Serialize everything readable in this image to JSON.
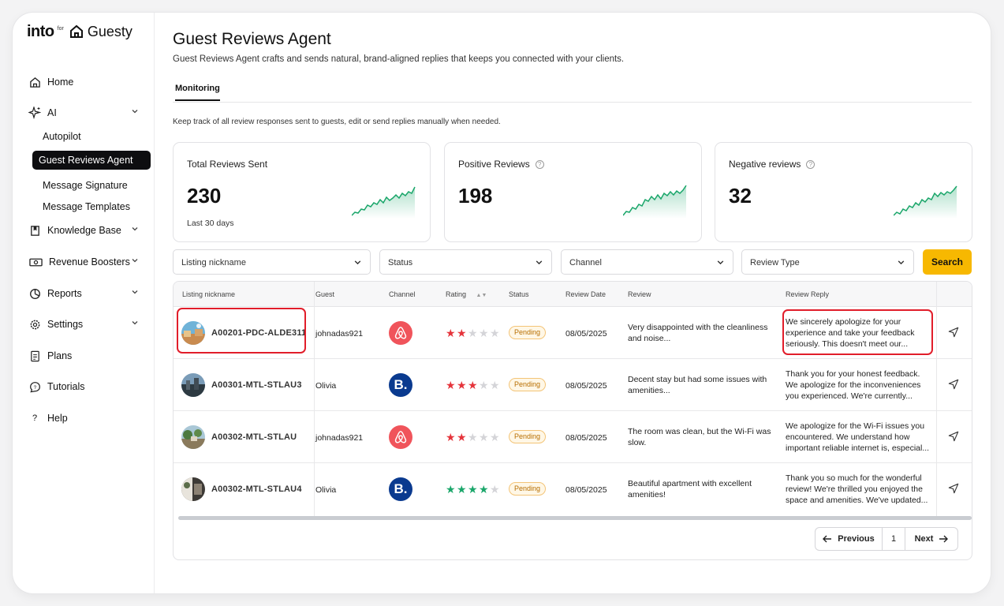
{
  "brand": {
    "name": "into",
    "for": "for",
    "partner": "Guesty"
  },
  "sidebar": {
    "items": [
      {
        "label": "Home",
        "icon": "home-icon"
      },
      {
        "label": "AI",
        "icon": "sparkle-icon"
      },
      {
        "label": "Autopilot"
      },
      {
        "label": "Guest Reviews Agent",
        "active": true
      },
      {
        "label": "Message Signature"
      },
      {
        "label": "Message Templates"
      },
      {
        "label": "Knowledge Base",
        "icon": "book-icon"
      },
      {
        "label": "Revenue Boosters",
        "icon": "cash-icon"
      },
      {
        "label": "Reports",
        "icon": "chart-pie-icon"
      },
      {
        "label": "Settings",
        "icon": "gear-icon"
      },
      {
        "label": "Plans",
        "icon": "document-icon"
      },
      {
        "label": "Tutorials",
        "icon": "chat-help-icon"
      },
      {
        "label": "Help",
        "icon": "question-icon"
      }
    ]
  },
  "page": {
    "title": "Guest Reviews Agent",
    "subtitle": "Guest Reviews Agent crafts and sends natural, brand-aligned replies that keeps you connected with your clients.",
    "tab": "Monitoring",
    "description": "Keep track of all review responses sent to guests, edit or send replies manually when needed."
  },
  "stats": [
    {
      "label": "Total Reviews Sent",
      "value": "230",
      "note": "Last 30 days"
    },
    {
      "label": "Positive Reviews",
      "value": "198",
      "help": "?"
    },
    {
      "label": "Negative reviews",
      "value": "32",
      "help": "?"
    }
  ],
  "filters": {
    "listing": "Listing nickname",
    "status": "Status",
    "channel": "Channel",
    "review_type": "Review Type",
    "search": "Search"
  },
  "table": {
    "headers": {
      "listing": "Listing nickname",
      "guest": "Guest",
      "channel": "Channel",
      "rating": "Rating",
      "status": "Status",
      "date": "Review Date",
      "review": "Review",
      "reply": "Review Reply"
    },
    "rows": [
      {
        "listing": "A00201-PDC-ALDE311",
        "guest": "johnadas921",
        "channel": "airbnb",
        "rating": 2,
        "status": "Pending",
        "date": "08/05/2025",
        "review": "Very disappointed with the cleanliness and noise...",
        "reply": "We sincerely apologize for your experience and take your feedback seriously. This doesn't meet our..."
      },
      {
        "listing": "A00301-MTL-STLAU3",
        "guest": "Olivia",
        "channel": "booking",
        "rating": 3,
        "status": "Pending",
        "date": "08/05/2025",
        "review": "Decent stay but had some issues with amenities...",
        "reply": "Thank you for your honest feedback. We apologize for the inconveniences you experienced. We're currently..."
      },
      {
        "listing": "A00302-MTL-STLAU",
        "guest": "johnadas921",
        "channel": "airbnb",
        "rating": 2,
        "status": "Pending",
        "date": "08/05/2025",
        "review": "The room was clean, but the Wi-Fi was slow.",
        "reply": "We apologize for the Wi-Fi issues you encountered. We understand how important reliable internet is, especial..."
      },
      {
        "listing": "A00302-MTL-STLAU4",
        "guest": "Olivia",
        "channel": "booking",
        "rating": 4,
        "status": "Pending",
        "date": "08/05/2025",
        "review": "Beautiful apartment with excellent amenities!",
        "reply": "Thank you so much for the wonderful review! We're thrilled you enjoyed the space and amenities. We've updated..."
      }
    ],
    "booking_glyph": "B."
  },
  "pagination": {
    "previous": "Previous",
    "page": "1",
    "next": "Next"
  },
  "colors": {
    "accent": "#f7b801",
    "negative_star": "#e5343b",
    "positive_star": "#1aa66a",
    "highlight": "#e11d2a"
  }
}
